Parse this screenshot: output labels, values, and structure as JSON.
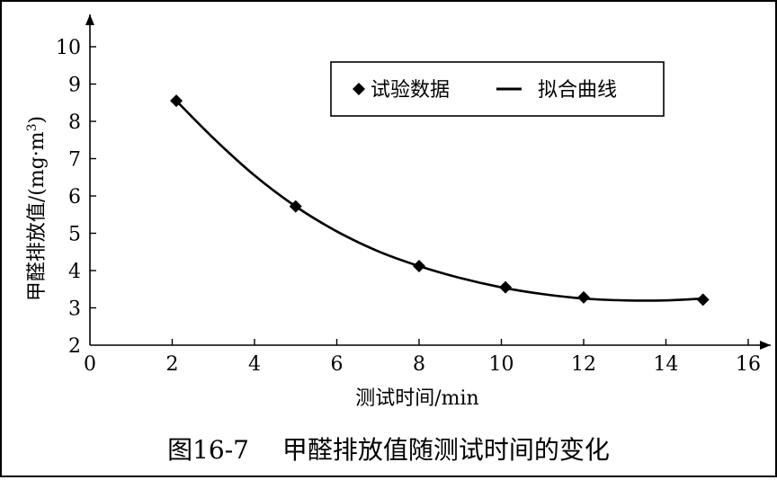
{
  "chart_data": {
    "type": "scatter",
    "caption": "图16-7　 甲醛排放值随测试时间的变化",
    "xlabel": "测试时间/min",
    "ylabel": "甲醛排放值/(mg·m",
    "ylabel_sup": "3",
    "ylabel_close": ")",
    "xlim": [
      0,
      16
    ],
    "ylim": [
      2,
      10
    ],
    "x_ticks": [
      0,
      2,
      4,
      6,
      8,
      10,
      12,
      14,
      16
    ],
    "y_ticks": [
      2,
      3,
      4,
      5,
      6,
      7,
      8,
      9,
      10
    ],
    "grid": false,
    "legend_position": "top-right",
    "series": [
      {
        "name": "试验数据",
        "marker": "diamond",
        "x": [
          2.1,
          5.0,
          8.0,
          10.1,
          12.0,
          14.9
        ],
        "y": [
          8.55,
          5.72,
          4.12,
          3.55,
          3.28,
          3.22
        ]
      },
      {
        "name": "拟合曲线",
        "style": "line",
        "x": [
          2.1,
          3.0,
          4.0,
          5.0,
          6.0,
          7.0,
          8.0,
          9.0,
          10.0,
          11.0,
          12.0,
          13.0,
          14.0,
          14.9
        ],
        "y": [
          8.55,
          7.55,
          6.55,
          5.72,
          5.05,
          4.52,
          4.12,
          3.8,
          3.55,
          3.37,
          3.25,
          3.2,
          3.2,
          3.25
        ]
      }
    ],
    "colors": {
      "ink": "#000000",
      "background": "#ffffff"
    }
  }
}
